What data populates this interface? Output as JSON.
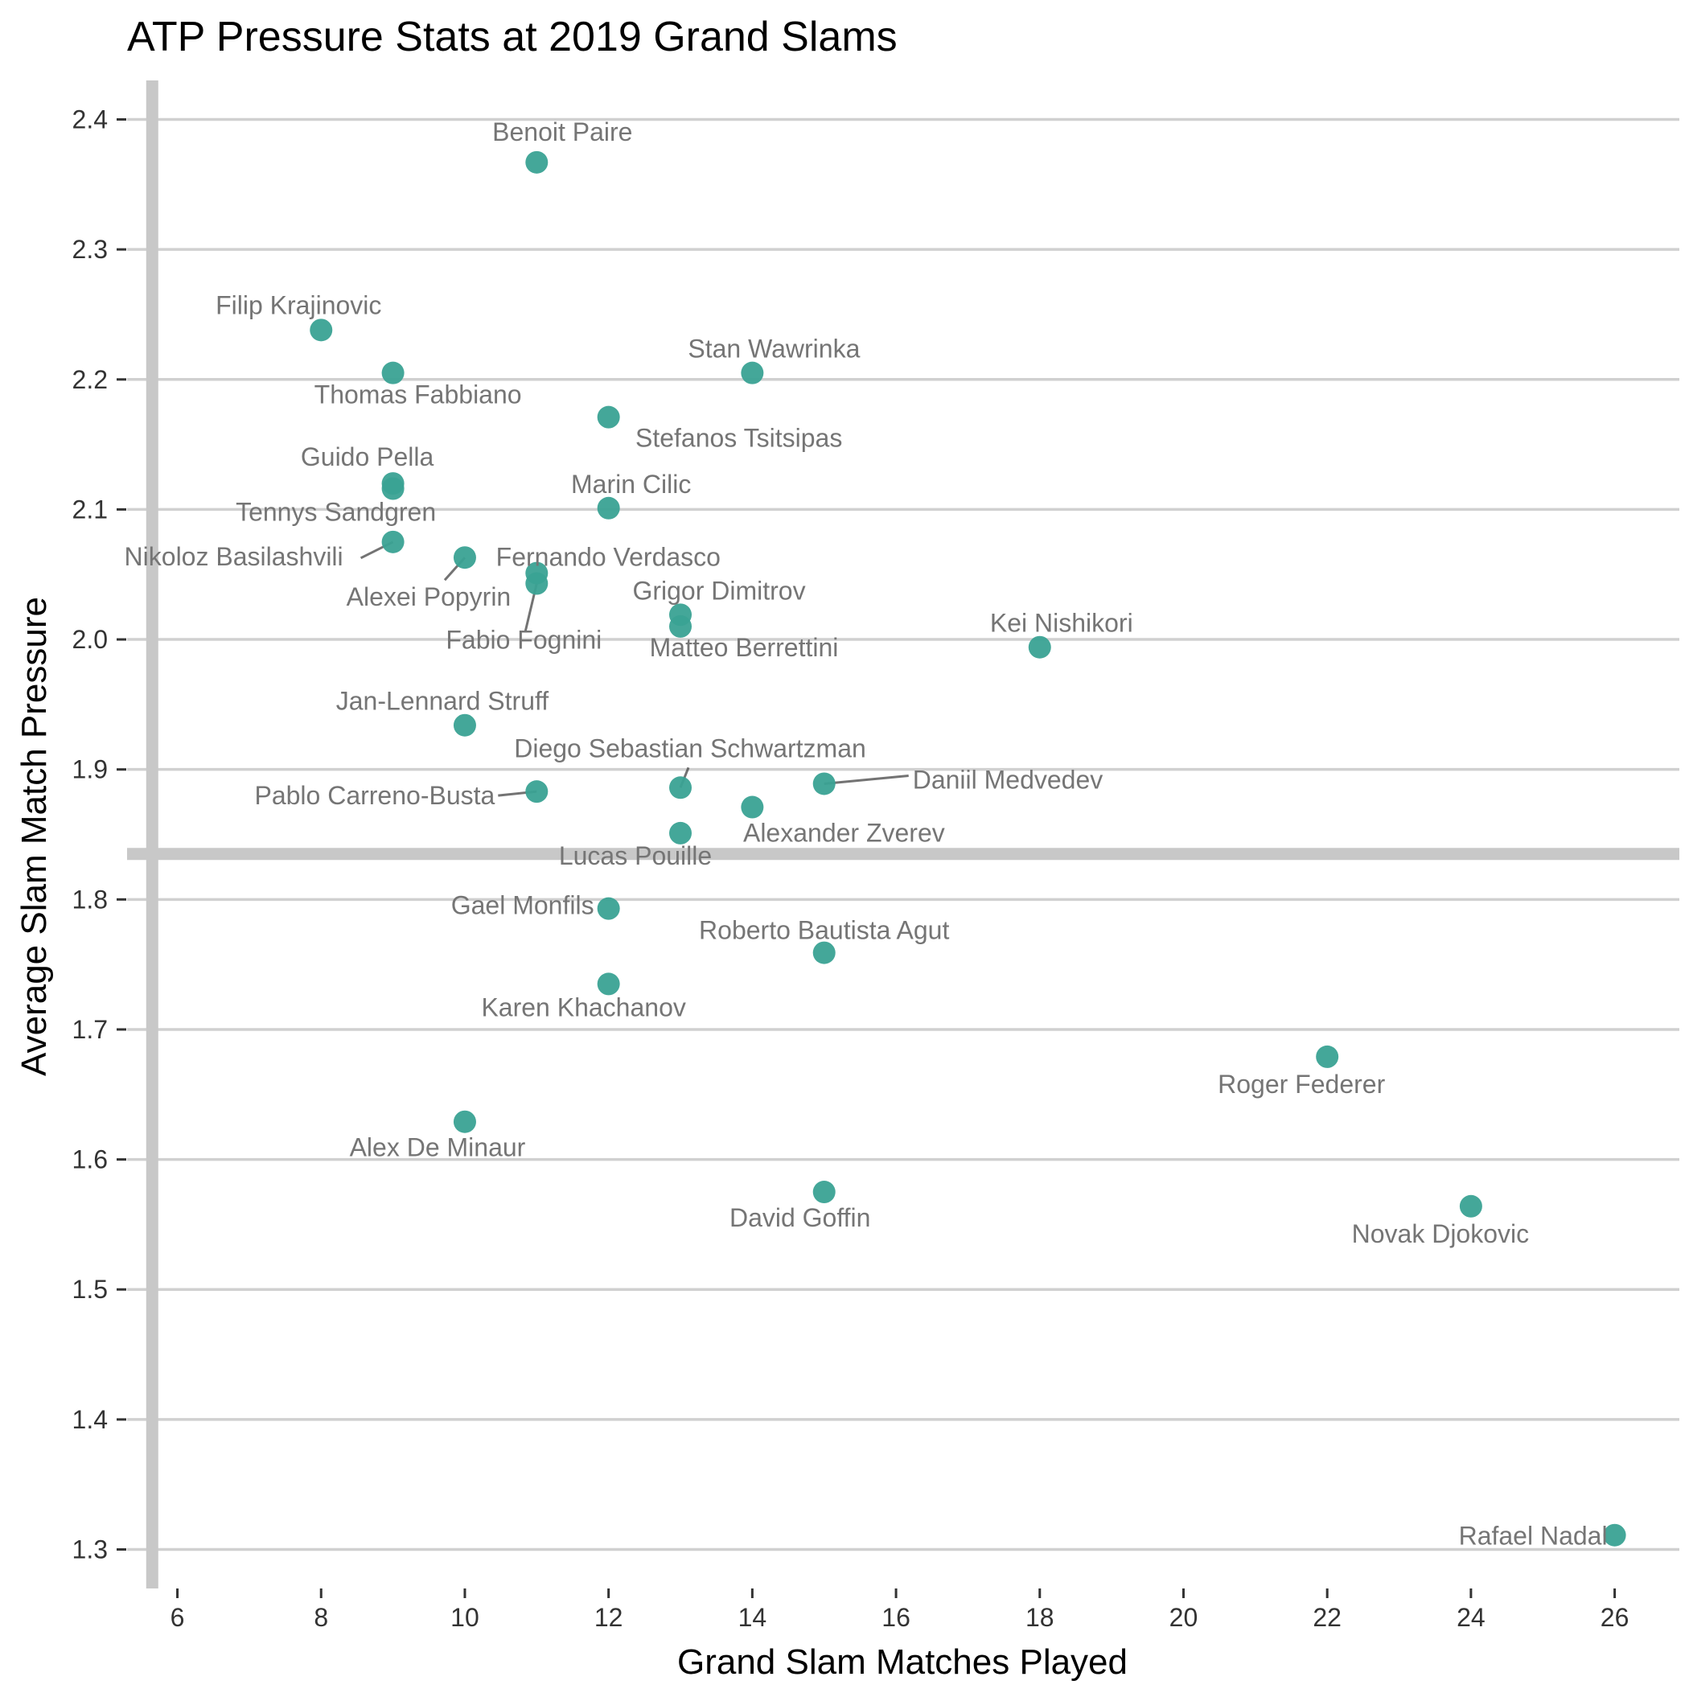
{
  "chart_data": {
    "type": "scatter",
    "title": "ATP Pressure Stats at 2019 Grand Slams",
    "xlabel": "Grand Slam Matches Played",
    "ylabel": "Average Slam Match Pressure",
    "xlim": [
      5.3,
      26.9
    ],
    "ylim": [
      1.27,
      2.43
    ],
    "xticks": [
      6,
      8,
      10,
      12,
      14,
      16,
      18,
      20,
      22,
      24,
      26
    ],
    "yticks": [
      1.3,
      1.4,
      1.5,
      1.6,
      1.7,
      1.8,
      1.9,
      2.0,
      2.1,
      2.2,
      2.3,
      2.4
    ],
    "grid": "horizontal",
    "reference_lines": {
      "vertical_x": 5.65,
      "horizontal_y": 1.835
    },
    "colors": {
      "points": "#3aa294",
      "labels": "#757575",
      "reference_lines": "#c8c8c8",
      "grid": "#d0d0d0"
    },
    "points": [
      {
        "name": "Benoit Paire",
        "x": 11,
        "y": 2.367
      },
      {
        "name": "Filip Krajinovic",
        "x": 8,
        "y": 2.238
      },
      {
        "name": "Thomas Fabbiano",
        "x": 9,
        "y": 2.205
      },
      {
        "name": "Stan Wawrinka",
        "x": 14,
        "y": 2.205
      },
      {
        "name": "Stefanos Tsitsipas",
        "x": 12,
        "y": 2.171
      },
      {
        "name": "Guido Pella",
        "x": 9,
        "y": 2.12
      },
      {
        "name": "Tennys Sandgren",
        "x": 9,
        "y": 2.116
      },
      {
        "name": "Marin Cilic",
        "x": 12,
        "y": 2.101
      },
      {
        "name": "Nikoloz Basilashvili",
        "x": 9,
        "y": 2.075
      },
      {
        "name": "Alexei Popyrin",
        "x": 10,
        "y": 2.063
      },
      {
        "name": "Fernando Verdasco",
        "x": 11,
        "y": 2.051
      },
      {
        "name": "Fabio Fognini",
        "x": 11,
        "y": 2.043
      },
      {
        "name": "Grigor Dimitrov",
        "x": 13,
        "y": 2.019
      },
      {
        "name": "Matteo Berrettini",
        "x": 13,
        "y": 2.01
      },
      {
        "name": "Kei Nishikori",
        "x": 18,
        "y": 1.994
      },
      {
        "name": "Jan-Lennard Struff",
        "x": 10,
        "y": 1.934
      },
      {
        "name": "Daniil Medvedev",
        "x": 15,
        "y": 1.889
      },
      {
        "name": "Diego Sebastian Schwartzman",
        "x": 13,
        "y": 1.886
      },
      {
        "name": "Pablo Carreno-Busta",
        "x": 11,
        "y": 1.883
      },
      {
        "name": "Alexander Zverev",
        "x": 14,
        "y": 1.871
      },
      {
        "name": "Lucas Pouille",
        "x": 13,
        "y": 1.851
      },
      {
        "name": "Gael Monfils",
        "x": 12,
        "y": 1.793
      },
      {
        "name": "Roberto Bautista Agut",
        "x": 15,
        "y": 1.759
      },
      {
        "name": "Karen Khachanov",
        "x": 12,
        "y": 1.735
      },
      {
        "name": "Roger Federer",
        "x": 22,
        "y": 1.679
      },
      {
        "name": "Alex De Minaur",
        "x": 10,
        "y": 1.629
      },
      {
        "name": "David Goffin",
        "x": 15,
        "y": 1.575
      },
      {
        "name": "Novak Djokovic",
        "x": 24,
        "y": 1.564
      },
      {
        "name": "Rafael Nadal",
        "x": 26,
        "y": 1.311
      }
    ]
  }
}
